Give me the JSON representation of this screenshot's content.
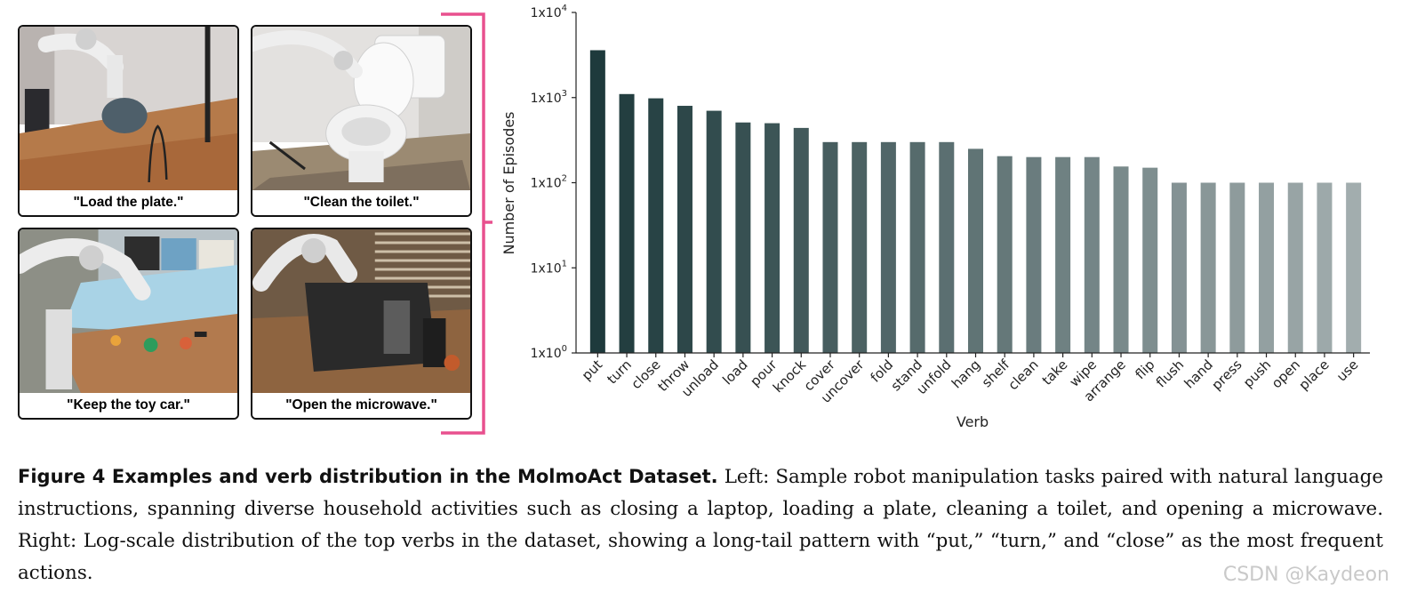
{
  "panels": [
    {
      "caption": "\"Load the plate.\""
    },
    {
      "caption": "\"Clean the toilet.\""
    },
    {
      "caption": "\"Keep the toy car.\""
    },
    {
      "caption": "\"Open the microwave.\""
    }
  ],
  "colors": {
    "brace": "#e8508e",
    "bar_dark": "#1e3a3c",
    "bar_light": "#a2adae"
  },
  "chart_data": {
    "type": "bar",
    "xlabel": "Verb",
    "ylabel": "Number of Episodes",
    "yscale": "log",
    "ylim": [
      1,
      10000
    ],
    "yticks": [
      {
        "base": "1x10",
        "exp": "0"
      },
      {
        "base": "1x10",
        "exp": "1"
      },
      {
        "base": "1x10",
        "exp": "2"
      },
      {
        "base": "1x10",
        "exp": "3"
      },
      {
        "base": "1x10",
        "exp": "4"
      }
    ],
    "categories": [
      "put",
      "turn",
      "close",
      "throw",
      "unload",
      "load",
      "pour",
      "knock",
      "cover",
      "uncover",
      "fold",
      "stand",
      "unfold",
      "hang",
      "shelf",
      "clean",
      "take",
      "wipe",
      "arrange",
      "flip",
      "flush",
      "hand",
      "press",
      "push",
      "open",
      "place",
      "use"
    ],
    "values": [
      3600,
      1100,
      980,
      800,
      700,
      510,
      500,
      440,
      300,
      300,
      300,
      300,
      300,
      250,
      205,
      200,
      200,
      200,
      155,
      150,
      100,
      100,
      100,
      100,
      100,
      100,
      100
    ]
  },
  "caption": {
    "lead": "Figure 4  Examples and verb distribution in the MolmoAct Dataset.",
    "body": " Left: Sample robot manipulation tasks paired with natural language instructions, spanning diverse household activities such as closing a laptop, loading a plate, cleaning a toilet, and opening a microwave. Right: Log-scale distribution of the top verbs in the dataset, showing a long-tail pattern with “put,” “turn,” and “close” as the most frequent actions."
  },
  "watermark": "CSDN @Kaydeon"
}
